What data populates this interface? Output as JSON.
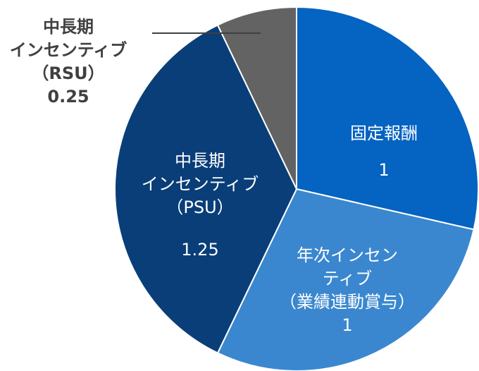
{
  "chart_data": {
    "type": "pie",
    "title": "",
    "legend": "none",
    "slices": [
      {
        "label_lines": [
          "固定報酬"
        ],
        "value_text": "1",
        "value": 1,
        "color": "#0563c1"
      },
      {
        "label_lines": [
          "年次インセン",
          "ティブ",
          "（業績連動賞与）"
        ],
        "value_text": "1",
        "value": 1,
        "color": "#3a87cf"
      },
      {
        "label_lines": [
          "中長期",
          "インセンティブ",
          "（PSU）"
        ],
        "value_text": "1.25",
        "value": 1.25,
        "color": "#0a3e78"
      },
      {
        "label_lines": [
          "中長期",
          "インセンティブ",
          "（RSU）"
        ],
        "value_text": "0.25",
        "value": 0.25,
        "color": "#636363"
      }
    ]
  }
}
